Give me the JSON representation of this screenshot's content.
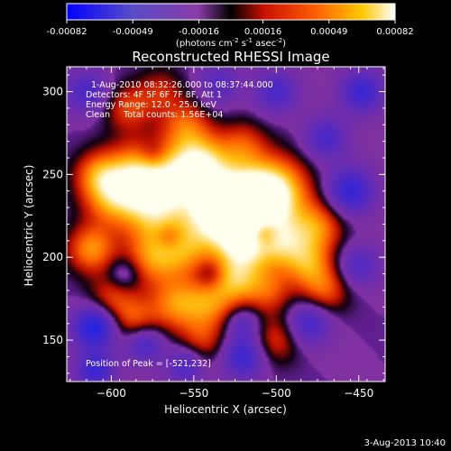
{
  "chart_data": {
    "type": "heatmap",
    "title": "Reconstructed RHESSI Image",
    "colorbar": {
      "ticks": [
        "-0.00082",
        "-0.00049",
        "-0.00016",
        "0.00016",
        "0.00049",
        "0.00082"
      ],
      "units_prefix": "(photons cm",
      "units_sup1": "-2",
      "units_mid1": " s",
      "units_sup2": "-1",
      "units_mid2": " asec",
      "units_sup3": "-2",
      "units_suffix": ")",
      "range": [
        -0.00082,
        0.00082
      ]
    },
    "xlabel": "Heliocentric X (arcsec)",
    "ylabel": "Heliocentric Y (arcsec)",
    "xlim": [
      -627,
      -434
    ],
    "ylim": [
      125,
      315
    ],
    "xticks": [
      -600,
      -550,
      -500,
      -450
    ],
    "yticks": [
      150,
      200,
      250,
      300
    ],
    "xtick_labels": [
      "−600",
      "−550",
      "−500",
      "−450"
    ],
    "ytick_labels": [
      "150",
      "200",
      "250",
      "300"
    ],
    "annotations": [
      "1-Aug-2010 08:32:26.000 to 08:37:44.000",
      "Detectors: 4F 5F 6F 7F 8F, Att 1",
      "Energy Range: 12.0 - 25.0 keV",
      "Clean     Total counts: 1.56E+04"
    ],
    "peak_label": "Position of Peak = [-521,232]",
    "blobs": [
      {
        "x": -518,
        "y": 232,
        "v": 0.00082,
        "r": 16
      },
      {
        "x": -535,
        "y": 228,
        "v": 0.0007,
        "r": 14
      },
      {
        "x": -500,
        "y": 240,
        "v": 0.00062,
        "r": 14
      },
      {
        "x": -560,
        "y": 248,
        "v": 0.00055,
        "r": 15
      },
      {
        "x": -545,
        "y": 258,
        "v": 0.00052,
        "r": 12
      },
      {
        "x": -585,
        "y": 250,
        "v": 0.00058,
        "r": 13
      },
      {
        "x": -575,
        "y": 228,
        "v": 0.0005,
        "r": 13
      },
      {
        "x": -600,
        "y": 235,
        "v": 0.00045,
        "r": 12
      },
      {
        "x": -608,
        "y": 250,
        "v": 0.0004,
        "r": 10
      },
      {
        "x": -612,
        "y": 205,
        "v": 0.0005,
        "r": 10
      },
      {
        "x": -575,
        "y": 200,
        "v": 0.00045,
        "r": 12
      },
      {
        "x": -555,
        "y": 205,
        "v": 0.00042,
        "r": 12
      },
      {
        "x": -520,
        "y": 205,
        "v": 0.00055,
        "r": 12
      },
      {
        "x": -495,
        "y": 208,
        "v": 0.00048,
        "r": 11
      },
      {
        "x": -475,
        "y": 218,
        "v": 0.00045,
        "r": 11
      },
      {
        "x": -480,
        "y": 195,
        "v": 0.00042,
        "r": 10
      },
      {
        "x": -470,
        "y": 180,
        "v": 0.00035,
        "r": 10
      },
      {
        "x": -560,
        "y": 172,
        "v": 0.00048,
        "r": 11
      },
      {
        "x": -540,
        "y": 172,
        "v": 0.0004,
        "r": 10
      },
      {
        "x": -525,
        "y": 185,
        "v": 0.00045,
        "r": 10
      },
      {
        "x": -505,
        "y": 180,
        "v": 0.00035,
        "r": 10
      },
      {
        "x": -600,
        "y": 175,
        "v": 0.00032,
        "r": 10
      },
      {
        "x": -585,
        "y": 162,
        "v": 0.00035,
        "r": 10
      },
      {
        "x": -545,
        "y": 150,
        "v": 0.0003,
        "r": 10
      },
      {
        "x": -500,
        "y": 150,
        "v": 0.0003,
        "r": 10
      },
      {
        "x": -590,
        "y": 290,
        "v": 0.00032,
        "r": 10
      },
      {
        "x": -555,
        "y": 280,
        "v": 0.00035,
        "r": 10
      },
      {
        "x": -520,
        "y": 268,
        "v": 0.0003,
        "r": 10
      },
      {
        "x": -570,
        "y": 300,
        "v": 0.00025,
        "r": 10
      },
      {
        "x": -610,
        "y": 158,
        "v": -0.0007,
        "r": 9
      },
      {
        "x": -610,
        "y": 132,
        "v": -0.0005,
        "r": 8
      },
      {
        "x": -580,
        "y": 148,
        "v": -0.00045,
        "r": 8
      },
      {
        "x": -555,
        "y": 135,
        "v": -0.0004,
        "r": 8
      },
      {
        "x": -520,
        "y": 140,
        "v": -0.0005,
        "r": 9
      },
      {
        "x": -480,
        "y": 160,
        "v": -0.00045,
        "r": 9
      },
      {
        "x": -450,
        "y": 195,
        "v": -0.00035,
        "r": 9
      },
      {
        "x": -455,
        "y": 240,
        "v": -0.00055,
        "r": 10
      },
      {
        "x": -470,
        "y": 272,
        "v": -0.0004,
        "r": 9
      },
      {
        "x": -448,
        "y": 300,
        "v": -0.0005,
        "r": 9
      },
      {
        "x": -500,
        "y": 300,
        "v": -0.0004,
        "r": 9
      },
      {
        "x": -535,
        "y": 305,
        "v": -0.0003,
        "r": 9
      },
      {
        "x": -615,
        "y": 300,
        "v": -0.0004,
        "r": 9
      },
      {
        "x": -565,
        "y": 212,
        "v": -0.0002,
        "r": 6
      },
      {
        "x": -508,
        "y": 215,
        "v": -0.0003,
        "r": 6
      },
      {
        "x": -540,
        "y": 190,
        "v": -0.00018,
        "r": 6
      },
      {
        "x": -520,
        "y": 160,
        "v": -0.0003,
        "r": 7
      },
      {
        "x": -592,
        "y": 190,
        "v": -0.00025,
        "r": 7
      },
      {
        "x": -575,
        "y": 262,
        "v": -0.00018,
        "r": 6
      },
      {
        "x": -540,
        "y": 240,
        "v": -0.00016,
        "r": 5
      }
    ]
  },
  "footer": {
    "timestamp": "3-Aug-2013 10:40"
  }
}
